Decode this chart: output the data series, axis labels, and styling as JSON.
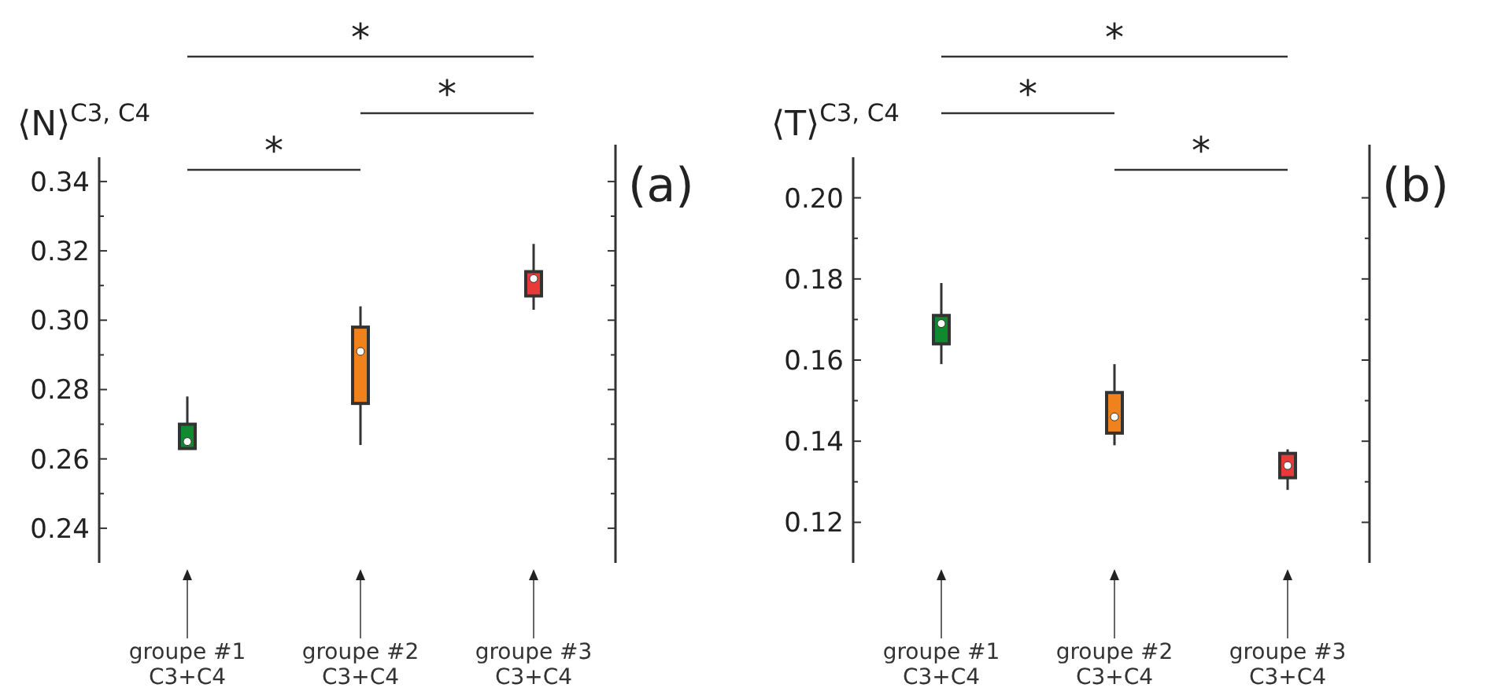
{
  "chart_data": [
    {
      "type": "box",
      "title": "(a)",
      "ylabel": "⟨N⟩$^{C3, C4}$",
      "categories": [
        "groupe #1\nC3+C4",
        "groupe #2\nC3+C4",
        "groupe #3\nC3+C4"
      ],
      "colors": [
        "#0f8a2e",
        "#f0821e",
        "#e83a3a"
      ],
      "boxes": [
        {
          "low": 0.263,
          "q1": 0.263,
          "median": 0.265,
          "q3": 0.27,
          "high": 0.278
        },
        {
          "low": 0.264,
          "q1": 0.276,
          "median": 0.291,
          "q3": 0.298,
          "high": 0.304
        },
        {
          "low": 0.303,
          "q1": 0.307,
          "median": 0.312,
          "q3": 0.314,
          "high": 0.322
        }
      ],
      "ylim": [
        0.23,
        0.347
      ],
      "yticks": [
        0.24,
        {
          "value": 0.25,
          "label": null
        },
        0.26,
        {
          "value": 0.27,
          "label": null
        },
        0.28,
        {
          "value": 0.29,
          "label": null
        },
        {
          "value": 0.3,
          "label": "0.30"
        },
        {
          "value": 0.31,
          "label": null
        },
        0.32,
        {
          "value": 0.33,
          "label": null
        },
        0.34
      ],
      "annotations": [
        "*",
        "*",
        "*"
      ]
    },
    {
      "type": "box",
      "title": "(b)",
      "ylabel": "⟨T⟩$^{C3, C4}$",
      "categories": [
        "groupe #1\nC3+C4",
        "groupe #2\nC3+C4",
        "groupe #3\nC3+C4"
      ],
      "colors": [
        "#0f8a2e",
        "#f0821e",
        "#e83a3a"
      ],
      "boxes": [
        {
          "low": 0.159,
          "q1": 0.164,
          "median": 0.169,
          "q3": 0.171,
          "high": 0.179
        },
        {
          "low": 0.139,
          "q1": 0.142,
          "median": 0.146,
          "q3": 0.152,
          "high": 0.159
        },
        {
          "low": 0.128,
          "q1": 0.131,
          "median": 0.134,
          "q3": 0.137,
          "high": 0.138
        }
      ],
      "ylim": [
        0.11,
        0.21
      ],
      "yticks": [
        0.12,
        {
          "value": 0.13,
          "label": null
        },
        0.14,
        {
          "value": 0.15,
          "label": null
        },
        0.16,
        {
          "value": 0.17,
          "label": null
        },
        0.18,
        {
          "value": 0.19,
          "label": null
        },
        {
          "value": 0.2,
          "label": "0.20"
        }
      ],
      "annotations": [
        "*",
        "*",
        "*"
      ]
    }
  ]
}
